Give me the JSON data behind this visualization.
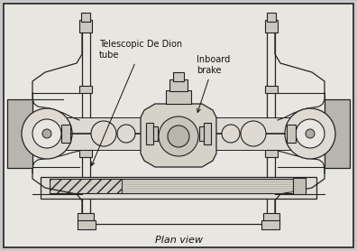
{
  "title": "Plan view",
  "label_telescopic": "Telescopic De Dion\ntube",
  "label_inboard": "Inboard\nbrake",
  "bg_color": "#c8c8c8",
  "border_color": "#222222",
  "line_color": "#222222",
  "fill_color": "#e8e6e0",
  "figsize": [
    3.96,
    2.78
  ],
  "dpi": 100
}
